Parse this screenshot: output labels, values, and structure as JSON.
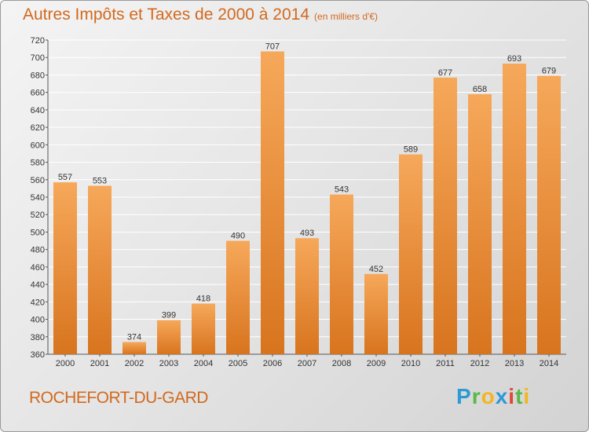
{
  "header": {
    "title": "Autres Impôts et Taxes de 2000 à 2014",
    "subtitle": "(en milliers d'€)"
  },
  "footer": {
    "location": "ROCHEFORT-DU-GARD",
    "logo_letters": [
      "P",
      "r",
      "o",
      "x",
      "i",
      "t",
      "i"
    ]
  },
  "colors": {
    "bar_top": "#f6a85a",
    "bar_bottom": "#d8741e",
    "accent_text": "#d2691e",
    "grid": "#ffffff"
  },
  "chart_data": {
    "type": "bar",
    "title": "Autres Impôts et Taxes de 2000 à 2014",
    "subtitle": "(en milliers d'€)",
    "categories": [
      "2000",
      "2001",
      "2002",
      "2003",
      "2004",
      "2005",
      "2006",
      "2007",
      "2008",
      "2009",
      "2010",
      "2011",
      "2012",
      "2013",
      "2014"
    ],
    "values": [
      557,
      553,
      374,
      399,
      418,
      490,
      707,
      493,
      543,
      452,
      589,
      677,
      658,
      693,
      679
    ],
    "ylim": [
      360,
      720
    ],
    "yticks": [
      360,
      380,
      400,
      420,
      440,
      460,
      480,
      500,
      520,
      540,
      560,
      580,
      600,
      620,
      640,
      660,
      680,
      700,
      720
    ],
    "grid": true,
    "xlabel": "",
    "ylabel": ""
  }
}
